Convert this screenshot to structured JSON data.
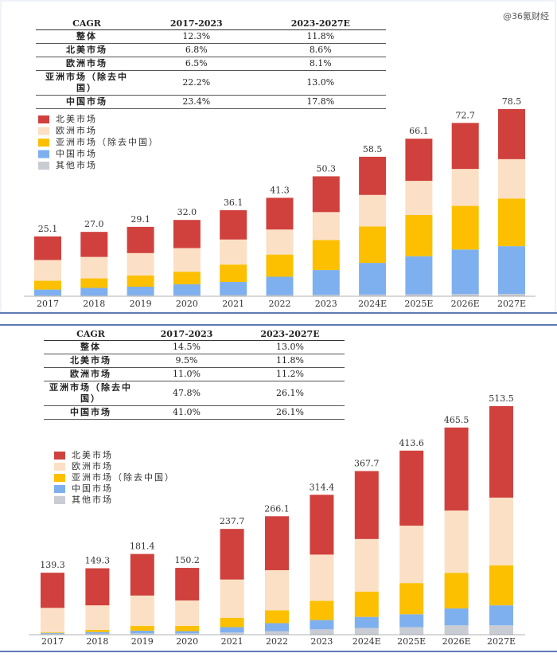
{
  "watermark": "@36氪财经",
  "chart_data": [
    {
      "type": "stacked-bar",
      "categories": [
        "2017",
        "2018",
        "2019",
        "2020",
        "2021",
        "2022",
        "2023",
        "2024E",
        "2025E",
        "2026E",
        "2027E"
      ],
      "totals": [
        25.1,
        27.0,
        29.1,
        32.0,
        36.1,
        41.3,
        50.3,
        58.5,
        66.1,
        72.7,
        78.5
      ],
      "total_labels": [
        "25.1",
        "27.0",
        "29.1",
        "32.0",
        "36.1",
        "41.3",
        "50.3",
        "58.5",
        "66.1",
        "72.7",
        "78.5"
      ],
      "series": [
        {
          "name": "北美市场",
          "color": "#d0413d",
          "values": [
            9.9,
            10.5,
            11.0,
            11.8,
            12.3,
            13.3,
            15.0,
            16.0,
            17.7,
            19.3,
            21.0
          ]
        },
        {
          "name": "欧洲市场",
          "color": "#fbe0c5",
          "values": [
            8.7,
            9.0,
            9.4,
            9.9,
            10.5,
            10.5,
            11.7,
            13.2,
            14.3,
            15.5,
            16.5
          ]
        },
        {
          "name": "亚洲市场（除去中国）",
          "color": "#fcc000",
          "values": [
            3.7,
            4.0,
            4.7,
            5.3,
            7.3,
            9.3,
            12.6,
            15.3,
            17.3,
            18.3,
            20.0
          ]
        },
        {
          "name": "中国市场",
          "color": "#7eb0ef",
          "values": [
            2.5,
            3.2,
            3.6,
            4.6,
            5.5,
            7.7,
            10.4,
            13.3,
            16.0,
            18.7,
            20.0
          ]
        },
        {
          "name": "其他市场",
          "color": "#c9ccd3",
          "values": [
            0.3,
            0.3,
            0.4,
            0.4,
            0.5,
            0.5,
            0.6,
            0.7,
            0.8,
            0.9,
            1.0
          ]
        }
      ],
      "cagr_table": {
        "header": [
          "CAGR",
          "2017-2023",
          "2023-2027E"
        ],
        "rows": [
          [
            "整体",
            "12.3%",
            "11.8%"
          ],
          [
            "北美市场",
            "6.8%",
            "8.6%"
          ],
          [
            "欧洲市场",
            "6.5%",
            "8.1%"
          ],
          [
            "亚洲市场（除去中国）",
            "22.2%",
            "13.0%"
          ],
          [
            "中国市场",
            "23.4%",
            "17.8%"
          ]
        ]
      }
    },
    {
      "type": "stacked-bar",
      "categories": [
        "2017",
        "2018",
        "2019",
        "2020",
        "2021",
        "2022",
        "2023",
        "2024E",
        "2025E",
        "2026E",
        "2027E"
      ],
      "totals": [
        139.3,
        149.3,
        181.4,
        150.2,
        237.7,
        266.1,
        314.4,
        367.7,
        413.6,
        465.5,
        513.5
      ],
      "total_labels": [
        "139.3",
        "149.3",
        "181.4",
        "150.2",
        "237.7",
        "266.1",
        "314.4",
        "367.7",
        "413.6",
        "465.5",
        "513.5"
      ],
      "series": [
        {
          "name": "北美市场",
          "color": "#d0413d",
          "values": [
            79,
            83.3,
            93.4,
            73.2,
            113.7,
            121.1,
            134.4,
            152.7,
            168.6,
            186.5,
            205.5
          ]
        },
        {
          "name": "欧洲市场",
          "color": "#fbe0c5",
          "values": [
            55,
            55,
            68,
            57,
            86,
            90,
            104,
            118,
            129,
            140,
            152
          ]
        },
        {
          "name": "亚洲市场（除去中国）",
          "color": "#fcc000",
          "values": [
            1.3,
            5,
            11,
            12,
            21,
            29,
            43,
            57,
            70,
            80,
            90
          ]
        },
        {
          "name": "中国市场",
          "color": "#7eb0ef",
          "values": [
            2,
            4,
            6,
            5,
            12,
            18,
            21,
            25,
            29,
            38,
            45
          ]
        },
        {
          "name": "其他市场",
          "color": "#c9ccd3",
          "values": [
            2,
            2,
            3,
            3,
            5,
            8,
            12,
            15,
            17,
            21,
            21
          ]
        }
      ],
      "cagr_table": {
        "header": [
          "CAGR",
          "2017-2023",
          "2023-2027E"
        ],
        "rows": [
          [
            "整体",
            "14.5%",
            "13.0%"
          ],
          [
            "北美市场",
            "9.5%",
            "11.8%"
          ],
          [
            "欧洲市场",
            "11.0%",
            "11.2%"
          ],
          [
            "亚洲市场（除去中国）",
            "47.8%",
            "26.1%"
          ],
          [
            "中国市场",
            "41.0%",
            "26.1%"
          ]
        ]
      }
    }
  ]
}
